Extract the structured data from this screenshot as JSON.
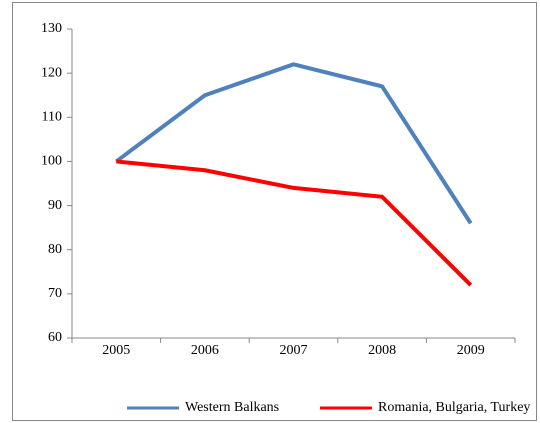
{
  "chart_data": {
    "type": "line",
    "categories": [
      "2005",
      "2006",
      "2007",
      "2008",
      "2009"
    ],
    "series": [
      {
        "name": "Western Balkans",
        "color": "#4f81bd",
        "values": [
          100,
          115,
          122,
          117,
          86
        ]
      },
      {
        "name": "Romania, Bulgaria, Turkey",
        "color": "#ff0000",
        "values": [
          100,
          98,
          94,
          92,
          72
        ]
      }
    ],
    "ylim": [
      60,
      130
    ],
    "yticks": [
      60,
      70,
      80,
      90,
      100,
      110,
      120,
      130
    ],
    "grid": false,
    "legend": "bottom"
  }
}
